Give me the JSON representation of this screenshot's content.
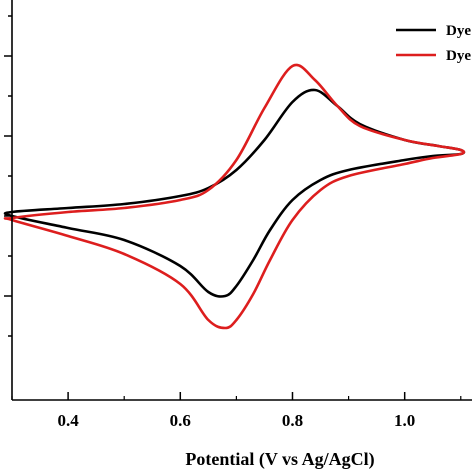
{
  "chart_data": {
    "type": "line",
    "title": "",
    "xlabel": "Potential (V vs Ag/AgCl)",
    "ylabel": "",
    "xlim": [
      0.3,
      1.12
    ],
    "ylim": [
      -1.0,
      1.0
    ],
    "x_ticks": [
      0.4,
      0.6,
      0.8,
      1.0
    ],
    "x_tick_labels": [
      "0.4",
      "0.6",
      "0.8",
      "1.0"
    ],
    "y_ticks": [
      0.92,
      0.72,
      0.52,
      0.32,
      0.12,
      -0.08,
      -0.28,
      -0.48,
      -0.68
    ],
    "y_tick_labels": [],
    "grid": false,
    "legend_position": "top-right",
    "series": [
      {
        "name": "Dye",
        "color": "#000000",
        "x": [
          0.3,
          0.4,
          0.5,
          0.6,
          0.65,
          0.7,
          0.75,
          0.8,
          0.84,
          0.88,
          0.92,
          1.0,
          1.06,
          1.1,
          1.1,
          1.05,
          1.0,
          0.9,
          0.85,
          0.8,
          0.76,
          0.73,
          0.7,
          0.68,
          0.65,
          0.6,
          0.5,
          0.4,
          0.3
        ],
        "y": [
          -0.06,
          -0.04,
          -0.02,
          0.02,
          0.06,
          0.15,
          0.3,
          0.49,
          0.55,
          0.47,
          0.38,
          0.3,
          0.27,
          0.25,
          0.23,
          0.22,
          0.2,
          0.15,
          0.1,
          0.0,
          -0.15,
          -0.3,
          -0.43,
          -0.48,
          -0.46,
          -0.33,
          -0.2,
          -0.14,
          -0.08
        ]
      },
      {
        "name": "Dye",
        "color": "#dd1e1e",
        "x": [
          0.3,
          0.4,
          0.5,
          0.6,
          0.65,
          0.7,
          0.75,
          0.8,
          0.84,
          0.88,
          0.92,
          1.0,
          1.06,
          1.1,
          1.1,
          1.05,
          1.0,
          0.9,
          0.85,
          0.8,
          0.76,
          0.73,
          0.7,
          0.68,
          0.65,
          0.6,
          0.5,
          0.4,
          0.3
        ],
        "y": [
          -0.09,
          -0.06,
          -0.04,
          0.0,
          0.05,
          0.2,
          0.46,
          0.67,
          0.6,
          0.47,
          0.37,
          0.3,
          0.27,
          0.25,
          0.23,
          0.21,
          0.18,
          0.12,
          0.05,
          -0.1,
          -0.3,
          -0.47,
          -0.6,
          -0.64,
          -0.6,
          -0.42,
          -0.27,
          -0.18,
          -0.1
        ]
      }
    ]
  }
}
